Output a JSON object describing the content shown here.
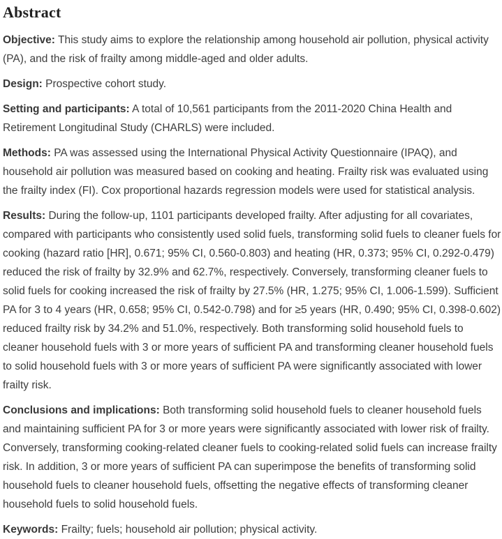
{
  "page": {
    "background": "#ffffff",
    "body_text_color": "#3d3d3d",
    "heading_color": "#1f1f1f"
  },
  "abstract": {
    "title": "Abstract",
    "sections": [
      {
        "label": "Objective:",
        "text": "This study aims to explore the relationship among household air pollution, physical activity (PA), and the risk of frailty among middle-aged and older adults."
      },
      {
        "label": "Design:",
        "text": "Prospective cohort study."
      },
      {
        "label": "Setting and participants:",
        "text": "A total of 10,561 participants from the 2011-2020 China Health and Retirement Longitudinal Study (CHARLS) were included."
      },
      {
        "label": "Methods:",
        "text": "PA was assessed using the International Physical Activity Questionnaire (IPAQ), and household air pollution was measured based on cooking and heating. Frailty risk was evaluated using the frailty index (FI). Cox proportional hazards regression models were used for statistical analysis."
      },
      {
        "label": "Results:",
        "text": "During the follow-up, 1101 participants developed frailty. After adjusting for all covariates, compared with participants who consistently used solid fuels, transforming solid fuels to cleaner fuels for cooking (hazard ratio [HR], 0.671; 95% CI, 0.560-0.803) and heating (HR, 0.373; 95% CI, 0.292-0.479) reduced the risk of frailty by 32.9% and 62.7%, respectively. Conversely, transforming cleaner fuels to solid fuels for cooking increased the risk of frailty by 27.5% (HR, 1.275; 95% CI, 1.006-1.599). Sufficient PA for 3 to 4 years (HR, 0.658; 95% CI, 0.542-0.798) and for ≥5 years (HR, 0.490; 95% CI, 0.398-0.602) reduced frailty risk by 34.2% and 51.0%, respectively. Both transforming solid household fuels to cleaner household fuels with 3 or more years of sufficient PA and transforming cleaner household fuels to solid household fuels with 3 or more years of sufficient PA were significantly associated with lower frailty risk."
      },
      {
        "label": "Conclusions and implications:",
        "text": "Both transforming solid household fuels to cleaner household fuels and maintaining sufficient PA for 3 or more years were significantly associated with lower risk of frailty. Conversely, transforming cooking-related cleaner fuels to cooking-related solid fuels can increase frailty risk. In addition, 3 or more years of sufficient PA can superimpose the benefits of transforming solid household fuels to cleaner household fuels, offsetting the negative effects of transforming cleaner household fuels to solid household fuels."
      },
      {
        "label": "Keywords:",
        "text": "Frailty; fuels; household air pollution; physical activity."
      }
    ]
  }
}
